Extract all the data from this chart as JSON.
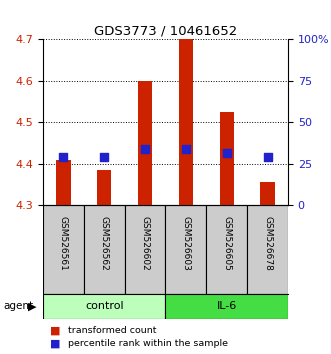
{
  "title": "GDS3773 / 10461652",
  "samples": [
    "GSM526561",
    "GSM526562",
    "GSM526602",
    "GSM526603",
    "GSM526605",
    "GSM526678"
  ],
  "transformed_counts": [
    4.41,
    4.385,
    4.6,
    4.7,
    4.525,
    4.355
  ],
  "percentile_ranks": [
    4.415,
    4.415,
    4.435,
    4.435,
    4.425,
    4.415
  ],
  "baseline": 4.3,
  "ylim": [
    4.3,
    4.7
  ],
  "yticks_left": [
    4.3,
    4.4,
    4.5,
    4.6,
    4.7
  ],
  "yticks_right": [
    0,
    25,
    50,
    75,
    100
  ],
  "left_color": "#cc2200",
  "right_color": "#2222cc",
  "bar_color": "#cc2200",
  "dot_color": "#2222cc",
  "control_color": "#bbffbb",
  "il6_color": "#44dd44",
  "sample_bg": "#cccccc",
  "legend_items": [
    {
      "label": "transformed count",
      "color": "#cc2200"
    },
    {
      "label": "percentile rank within the sample",
      "color": "#2222cc"
    }
  ],
  "bar_width": 0.35,
  "dot_size": 40
}
